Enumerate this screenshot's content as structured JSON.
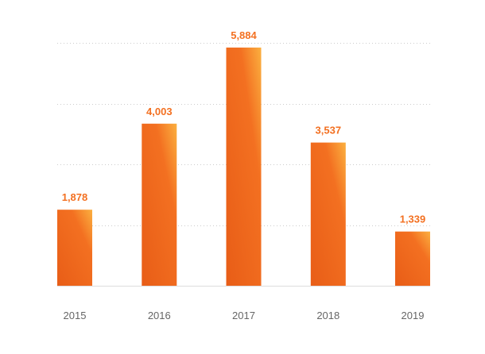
{
  "chart_data": {
    "type": "bar",
    "categories": [
      "2015",
      "2016",
      "2017",
      "2018",
      "2019"
    ],
    "values": [
      1878,
      4003,
      5884,
      3537,
      1339
    ],
    "value_labels": [
      "1,878",
      "4,003",
      "5,884",
      "3,537",
      "1,339"
    ],
    "ylim": [
      0,
      6000
    ],
    "grid": true,
    "legend": "none",
    "colors": {
      "bar_main": "#f37021",
      "bar_dark": "#e85d17",
      "bar_highlight": "#fbb040",
      "value_label": "#f37021",
      "tick_label": "#666666",
      "grid": "#cccccc",
      "baseline": "#dddddd"
    }
  }
}
